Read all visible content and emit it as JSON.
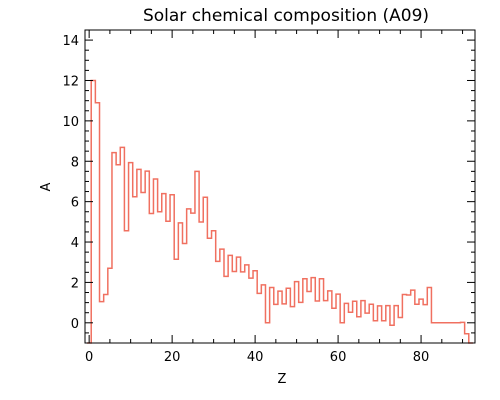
{
  "chart_data": {
    "type": "line",
    "step": true,
    "title": "Solar chemical composition (A09)",
    "xlabel": "Z",
    "ylabel": "A",
    "xlim": [
      -1,
      93
    ],
    "ylim": [
      -1,
      14.5
    ],
    "xticks": [
      0,
      20,
      40,
      60,
      80
    ],
    "yticks": [
      0,
      2,
      4,
      6,
      8,
      10,
      12,
      14
    ],
    "grid": false,
    "series": [
      {
        "color": "#f07060",
        "x": [
          0,
          1,
          2,
          3,
          4,
          5,
          6,
          7,
          8,
          9,
          10,
          11,
          12,
          13,
          14,
          15,
          16,
          17,
          18,
          19,
          20,
          21,
          22,
          23,
          24,
          25,
          26,
          27,
          28,
          29,
          30,
          31,
          32,
          33,
          34,
          35,
          36,
          37,
          38,
          39,
          40,
          41,
          42,
          43,
          44,
          45,
          46,
          47,
          48,
          49,
          50,
          51,
          52,
          53,
          54,
          55,
          56,
          57,
          58,
          59,
          60,
          61,
          62,
          63,
          64,
          65,
          66,
          67,
          68,
          69,
          70,
          71,
          72,
          73,
          74,
          75,
          76,
          77,
          78,
          79,
          80,
          81,
          82,
          83,
          84,
          85,
          86,
          87,
          88,
          89,
          90,
          91,
          92
        ],
        "y": [
          -1,
          12.0,
          10.9,
          1.05,
          1.4,
          2.7,
          8.43,
          7.83,
          8.69,
          4.56,
          7.93,
          6.24,
          7.6,
          6.45,
          7.51,
          5.41,
          7.12,
          5.5,
          6.4,
          5.03,
          6.34,
          3.15,
          4.95,
          3.93,
          5.64,
          5.43,
          7.5,
          4.99,
          6.22,
          4.19,
          4.56,
          3.04,
          3.65,
          2.3,
          3.34,
          2.54,
          3.25,
          2.52,
          2.87,
          2.21,
          2.58,
          1.46,
          1.88,
          0.0,
          1.75,
          0.91,
          1.57,
          0.94,
          1.71,
          0.8,
          2.04,
          1.01,
          2.18,
          1.55,
          2.24,
          1.08,
          2.18,
          1.1,
          1.58,
          0.72,
          1.42,
          0.0,
          0.96,
          0.52,
          1.07,
          0.3,
          1.1,
          0.48,
          0.92,
          0.1,
          0.84,
          0.1,
          0.85,
          -0.12,
          0.85,
          0.26,
          1.4,
          1.38,
          1.62,
          0.92,
          1.17,
          0.9,
          1.75,
          0.0,
          0.0,
          0.0,
          0.0,
          0.0,
          0.0,
          0.0,
          0.02,
          -0.54,
          -1
        ]
      }
    ]
  }
}
